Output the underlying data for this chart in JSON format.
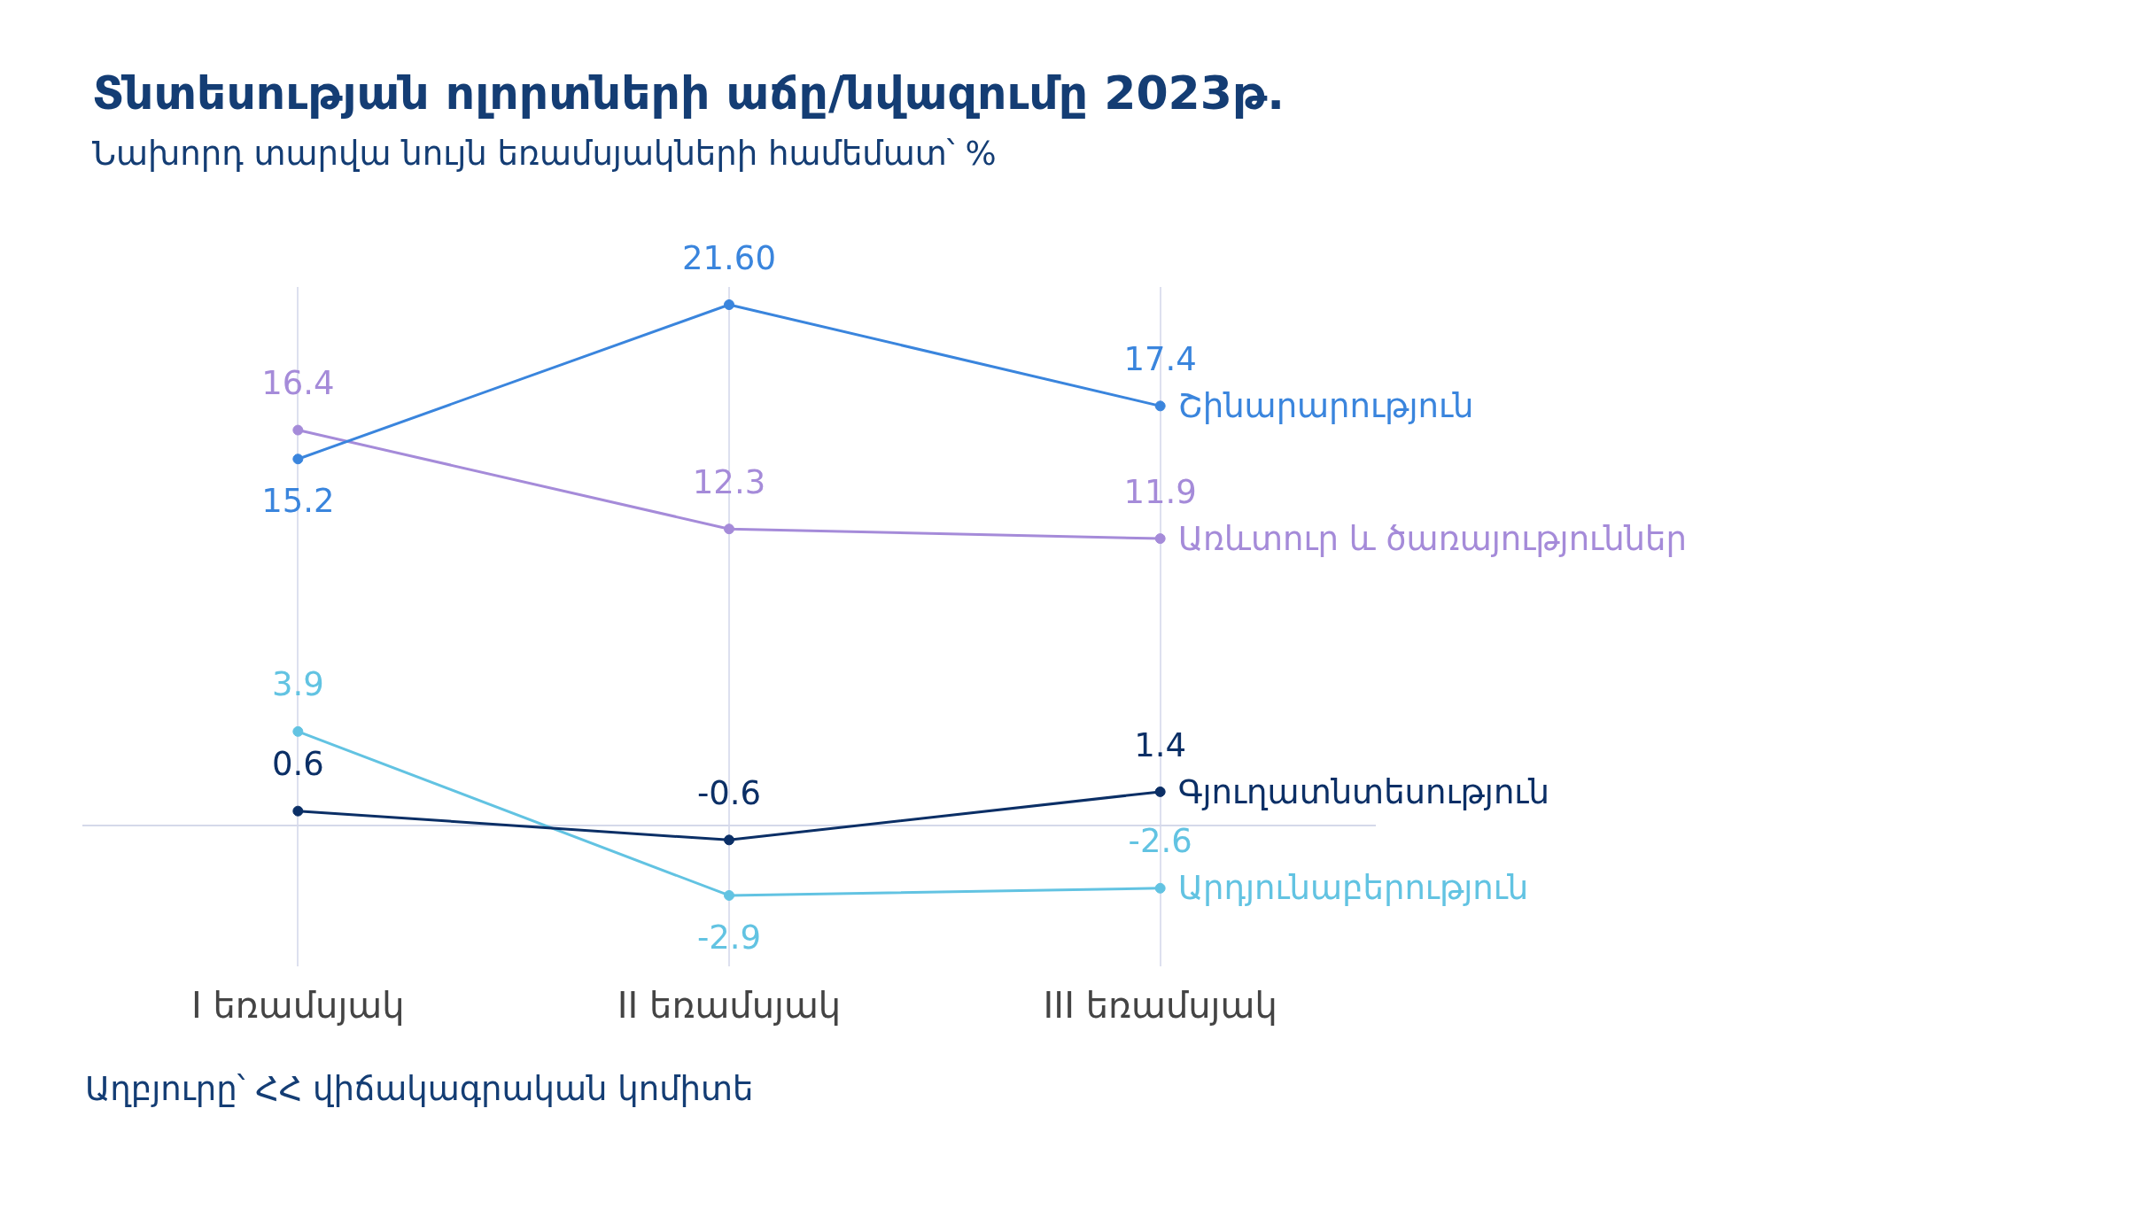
{
  "chart_data": {
    "type": "line",
    "title": "Տնտեսության ոլորտների աճը/նվազումը 2023թ.",
    "subtitle": "Նախորդ տարվա նույն եռամսյակների համեմատ՝ %",
    "categories": [
      "I եռամսյակ",
      "II եռամսյակ",
      "III եռամսյակ"
    ],
    "series": [
      {
        "name": "Շինարարություն",
        "color": "#3a85dd",
        "values": [
          15.2,
          21.6,
          17.4
        ],
        "value_labels": [
          "15.2",
          "21.60",
          "17.4"
        ]
      },
      {
        "name": "Առևտուր և ծառայություններ",
        "color": "#a58bd9",
        "values": [
          16.4,
          12.3,
          11.9
        ],
        "value_labels": [
          "16.4",
          "12.3",
          "11.9"
        ]
      },
      {
        "name": "Գյուղատնտեսություն",
        "color": "#0b2f66",
        "values": [
          0.6,
          -0.6,
          1.4
        ],
        "value_labels": [
          "0.6",
          "-0.6",
          "1.4"
        ]
      },
      {
        "name": "Արդյունաբերություն",
        "color": "#62c3e2",
        "values": [
          3.9,
          -2.9,
          -2.6
        ],
        "value_labels": [
          "3.9",
          "-2.9",
          "-2.6"
        ]
      }
    ],
    "ref_lines": [
      {
        "axis": "y",
        "value": 0,
        "color": "#d5d9ea"
      }
    ],
    "grid": "x",
    "tick_labels": "x",
    "legend": false,
    "marker": "circle",
    "line_style": "solid",
    "annotations": [
      "Աղբյուրը՝ ՀՀ վիճակագրական կոմիտե"
    ]
  }
}
